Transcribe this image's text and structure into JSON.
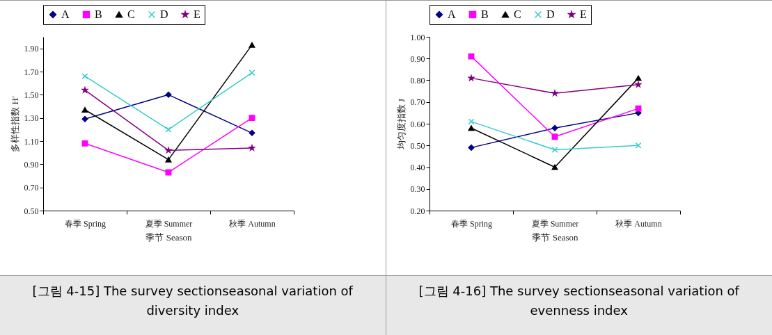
{
  "chart_data": [
    {
      "type": "line",
      "xlabel": "季节 Season",
      "ylabel": "多样性指数 H′",
      "categories": [
        "春季 Spring",
        "夏季 Summer",
        "秋季 Autumn"
      ],
      "ylim": [
        0.5,
        2.0
      ],
      "yticks": [
        {
          "value": 0.5,
          "label": "0.50"
        },
        {
          "value": 0.7,
          "label": "0.70"
        },
        {
          "value": 0.9,
          "label": "0.90"
        },
        {
          "value": 1.1,
          "label": "1.10"
        },
        {
          "value": 1.3,
          "label": "1.30"
        },
        {
          "value": 1.5,
          "label": "1.50"
        },
        {
          "value": 1.7,
          "label": "1.70"
        },
        {
          "value": 1.9,
          "label": "1.90"
        }
      ],
      "legend": "top",
      "annotations": [
        "[그림 4-15] The survey sectionseasonal variation of diversity index"
      ],
      "series": [
        {
          "name": "A",
          "color": "#000080",
          "marker": "diamond",
          "values": [
            1.29,
            1.5,
            1.17
          ]
        },
        {
          "name": "B",
          "color": "#ff00ff",
          "marker": "square",
          "values": [
            1.08,
            0.83,
            1.3
          ]
        },
        {
          "name": "C",
          "color": "#000000",
          "marker": "triangle",
          "values": [
            1.37,
            0.94,
            1.93
          ]
        },
        {
          "name": "D",
          "color": "#33cccc",
          "marker": "cross",
          "values": [
            1.66,
            1.2,
            1.69
          ]
        },
        {
          "name": "E",
          "color": "#800080",
          "marker": "star",
          "values": [
            1.54,
            1.02,
            1.04
          ]
        }
      ]
    },
    {
      "type": "line",
      "xlabel": "季节 Season",
      "ylabel": "均匀度指数 J",
      "categories": [
        "春季 Spring",
        "夏季 Summer",
        "秋季 Autumn"
      ],
      "ylim": [
        0.2,
        1.0
      ],
      "yticks": [
        {
          "value": 0.2,
          "label": "0.20"
        },
        {
          "value": 0.3,
          "label": "0.30"
        },
        {
          "value": 0.4,
          "label": "0.40"
        },
        {
          "value": 0.5,
          "label": "0.50"
        },
        {
          "value": 0.6,
          "label": "0.60"
        },
        {
          "value": 0.7,
          "label": "0.70"
        },
        {
          "value": 0.8,
          "label": "0.80"
        },
        {
          "value": 0.9,
          "label": "0.90"
        },
        {
          "value": 1.0,
          "label": "1.00"
        }
      ],
      "legend": "top",
      "annotations": [
        "[그림 4-16] The survey sectionseasonal variation of evenness index"
      ],
      "series": [
        {
          "name": "A",
          "color": "#000080",
          "marker": "diamond",
          "values": [
            0.49,
            0.58,
            0.65
          ]
        },
        {
          "name": "B",
          "color": "#ff00ff",
          "marker": "square",
          "values": [
            0.91,
            0.54,
            0.67
          ]
        },
        {
          "name": "C",
          "color": "#000000",
          "marker": "triangle",
          "values": [
            0.58,
            0.4,
            0.81
          ]
        },
        {
          "name": "D",
          "color": "#33cccc",
          "marker": "cross",
          "values": [
            0.61,
            0.48,
            0.5
          ]
        },
        {
          "name": "E",
          "color": "#800080",
          "marker": "star",
          "values": [
            0.81,
            0.74,
            0.78
          ]
        }
      ]
    }
  ]
}
